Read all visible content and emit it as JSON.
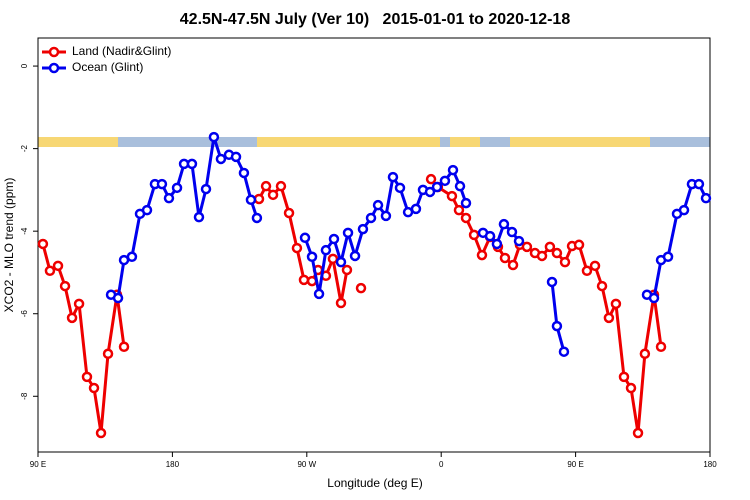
{
  "chart_data": {
    "type": "line",
    "title": "42.5N-47.5N July (Ver 10)   2015-01-01 to 2020-12-18",
    "x_label": "Longitude (deg E)",
    "y_label": "XCO2 - MLO trend (ppm)",
    "xlim": [
      90,
      540
    ],
    "ylim": [
      -9.35,
      0.68
    ],
    "xticks": [
      {
        "value": 90,
        "label": "90 E"
      },
      180,
      {
        "value": 270,
        "label": "90 W"
      },
      {
        "value": 360,
        "label": "0"
      },
      {
        "value": 450,
        "label": "90 E"
      },
      {
        "value": 540,
        "label": "180"
      }
    ],
    "yticks": [
      0,
      -2,
      -4,
      -6,
      -8
    ],
    "legend": "top-left",
    "series": [
      {
        "name": "Land (Nadir&Glint)",
        "color": "#ee0000",
        "x": [
          93.3,
          98.0,
          103.4,
          108.1,
          112.8,
          117.5,
          122.8,
          127.5,
          132.2,
          136.9,
          142.9,
          147.6,
          null,
          238.0,
          242.7,
          247.4,
          252.7,
          258.1,
          263.4,
          268.1,
          273.5,
          277.5,
          282.8,
          287.5,
          292.9,
          296.9,
          null,
          306.3,
          null,
          353.2,
          357.8,
          367.2,
          371.9,
          376.6,
          382.0,
          387.3,
          392.7,
          398.0,
          402.7,
          408.1,
          412.7,
          417.4,
          422.8,
          427.5,
          432.8,
          437.5,
          442.9,
          447.6,
          452.3,
          457.6,
          463.0,
          467.7,
          472.3,
          477.0,
          482.4,
          487.1,
          491.8,
          496.4,
          502.5,
          507.2
        ],
        "values": [
          -4.31,
          -4.96,
          -4.84,
          -5.33,
          -6.1,
          -5.76,
          -7.53,
          -7.8,
          -8.89,
          -6.97,
          -5.54,
          -6.8,
          null,
          -3.22,
          -2.91,
          -3.12,
          -2.91,
          -3.56,
          -4.41,
          -5.18,
          -5.21,
          -4.94,
          -5.08,
          -4.67,
          -5.74,
          -4.94,
          null,
          -5.38,
          null,
          -2.74,
          -2.93,
          -3.15,
          -3.49,
          -3.68,
          -4.09,
          -4.58,
          -4.14,
          -4.38,
          -4.65,
          -4.82,
          -4.33,
          -4.38,
          -4.53,
          -4.6,
          -4.38,
          -4.53,
          -4.75,
          -4.36,
          -4.33,
          -4.96,
          -4.84,
          -5.33,
          -6.1,
          -5.76,
          -7.53,
          -7.8,
          -8.89,
          -6.97,
          -5.54,
          -6.8
        ]
      },
      {
        "name": "Ocean (Glint)",
        "color": "#0000ee",
        "x": [
          138.9,
          143.6,
          147.6,
          152.9,
          158.3,
          163.0,
          168.3,
          173.0,
          177.7,
          183.1,
          187.8,
          193.1,
          197.8,
          202.5,
          207.8,
          212.5,
          217.9,
          222.6,
          227.9,
          232.6,
          236.6,
          null,
          268.8,
          273.5,
          278.2,
          282.8,
          288.2,
          292.9,
          297.6,
          302.3,
          307.6,
          313.0,
          317.7,
          323.0,
          327.7,
          332.4,
          337.8,
          343.1,
          347.8,
          352.5,
          357.2,
          362.5,
          367.9,
          372.6,
          376.6,
          null,
          388.0,
          392.7,
          397.3,
          402.0,
          407.4,
          412.1,
          null,
          434.2,
          437.5,
          442.2,
          null,
          497.8,
          502.5,
          507.2,
          511.9,
          517.9,
          522.6,
          527.9,
          532.6,
          537.3
        ],
        "values": [
          -5.54,
          -5.62,
          -4.7,
          -4.62,
          -3.58,
          -3.49,
          -2.86,
          -2.86,
          -3.2,
          -2.95,
          -2.37,
          -2.37,
          -3.66,
          -2.98,
          -1.72,
          -2.25,
          -2.15,
          -2.2,
          -2.59,
          -3.24,
          -3.68,
          null,
          -4.16,
          -4.62,
          -5.52,
          -4.46,
          -4.19,
          -4.75,
          -4.04,
          -4.6,
          -3.95,
          -3.68,
          -3.37,
          -3.63,
          -2.69,
          -2.95,
          -3.54,
          -3.46,
          -3.0,
          -3.05,
          -2.93,
          -2.78,
          -2.52,
          -2.91,
          -3.32,
          null,
          -4.04,
          -4.12,
          -4.31,
          -3.83,
          -4.02,
          -4.24,
          null,
          -5.23,
          -6.3,
          -6.92,
          null,
          -5.54,
          -5.62,
          -4.7,
          -4.62,
          -3.58,
          -3.49,
          -2.86,
          -2.86,
          -3.2
        ]
      }
    ]
  }
}
